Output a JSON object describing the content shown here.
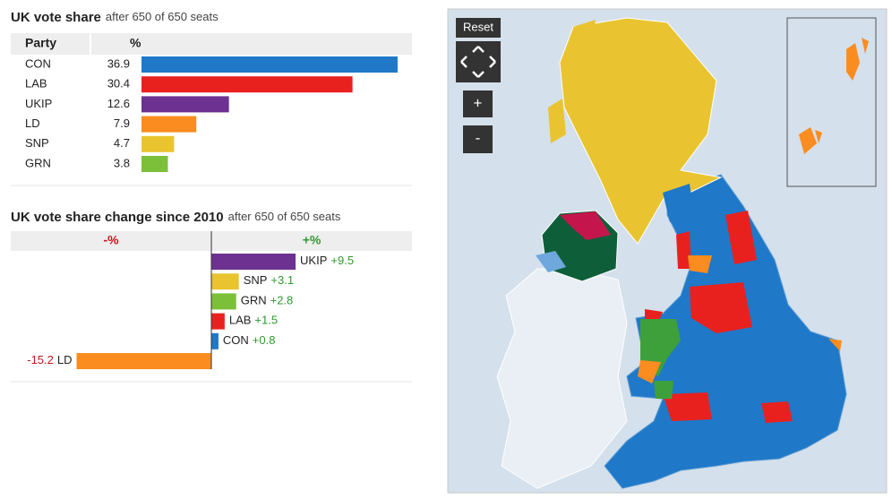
{
  "chart_data": [
    {
      "type": "bar",
      "orientation": "horizontal",
      "title": "UK vote share",
      "subtitle": "after 650 of 650 seats",
      "column_headers": [
        "Party",
        "%"
      ],
      "categories": [
        "CON",
        "LAB",
        "UKIP",
        "LD",
        "SNP",
        "GRN"
      ],
      "values": [
        36.9,
        30.4,
        12.6,
        7.9,
        4.7,
        3.8
      ],
      "colors": [
        "#1f78c8",
        "#e8211f",
        "#6c3191",
        "#fb8c1f",
        "#e9c430",
        "#7cc03a"
      ]
    },
    {
      "type": "bar",
      "orientation": "horizontal",
      "title": "UK vote share change since 2010",
      "subtitle": "after 650 of 650 seats",
      "column_headers": [
        "-%",
        "+%"
      ],
      "categories": [
        "UKIP",
        "SNP",
        "GRN",
        "LAB",
        "CON",
        "LD"
      ],
      "values": [
        9.5,
        3.1,
        2.8,
        1.5,
        0.8,
        -15.2
      ],
      "value_labels": [
        "+9.5",
        "+3.1",
        "+2.8",
        "+1.5",
        "+0.8",
        "-15.2"
      ],
      "colors": [
        "#6c3191",
        "#e9c430",
        "#7cc03a",
        "#e8211f",
        "#1f78c8",
        "#fb8c1f"
      ]
    }
  ],
  "map_controls": {
    "reset": "Reset",
    "zoom_in": "+",
    "zoom_out": "-"
  }
}
